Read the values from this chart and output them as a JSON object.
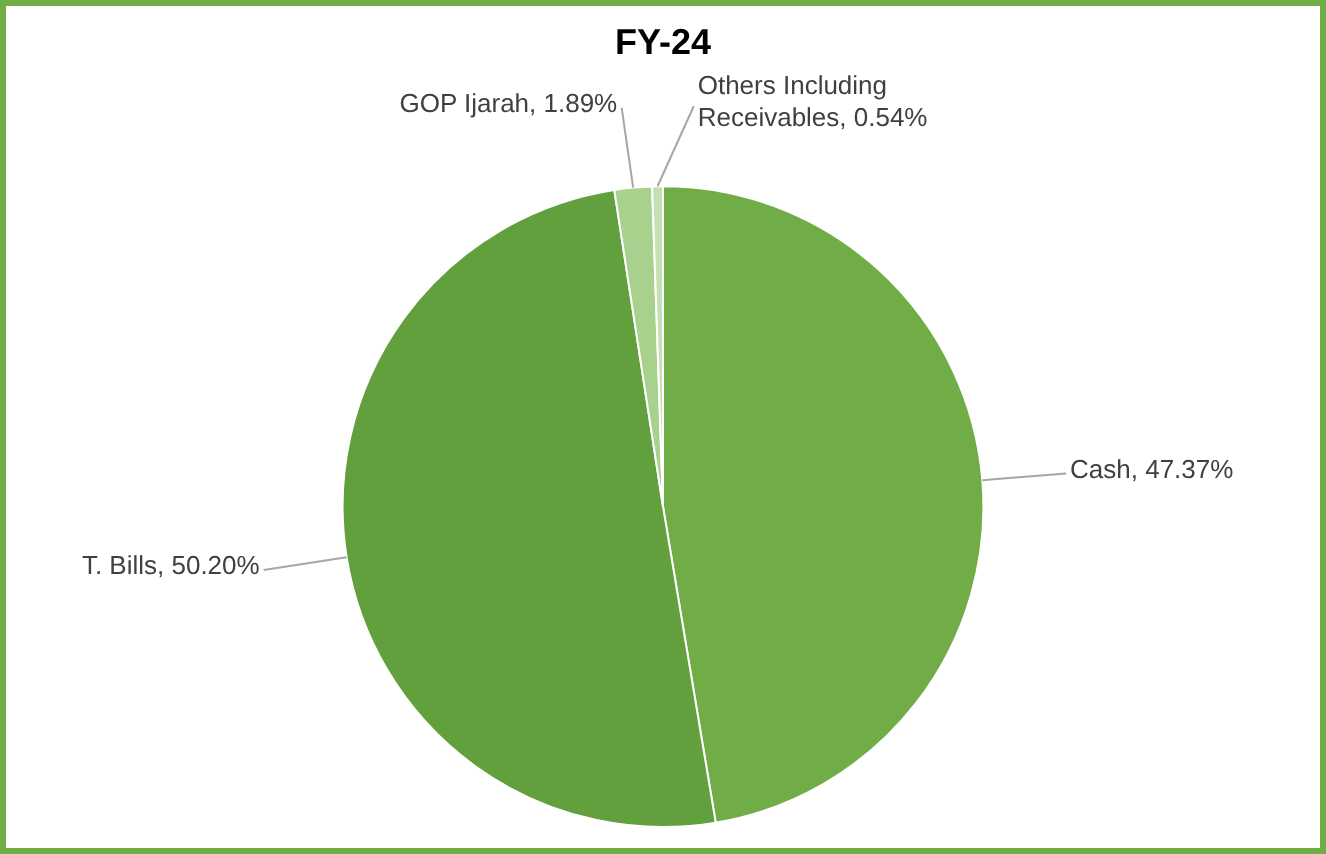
{
  "chart_data": {
    "type": "pie",
    "title": "FY-24",
    "categories": [
      "Cash",
      "T. Bills",
      "GOP Ijarah",
      "Others Including Receivables"
    ],
    "values": [
      47.37,
      50.2,
      1.89,
      0.54
    ],
    "value_labels": [
      "47.37%",
      "50.20%",
      "1.89%",
      "0.54%"
    ],
    "colors": [
      "#70ad47",
      "#62a03d",
      "#a9d18e",
      "#c5e0b4"
    ],
    "legend": false
  }
}
